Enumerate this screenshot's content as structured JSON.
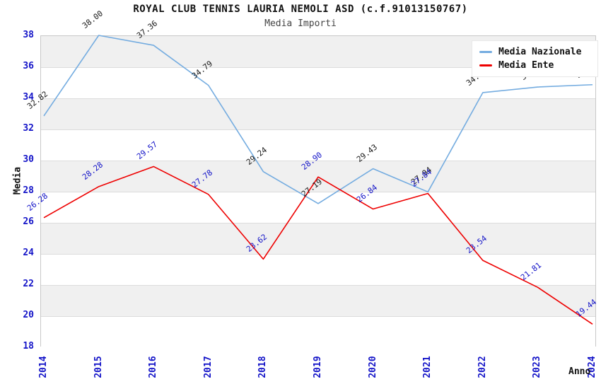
{
  "header": {
    "title": "ROYAL CLUB TENNIS LAURIA NEMOLI ASD (c.f.91013150767)",
    "subtitle": "Media Importi"
  },
  "chart_data": {
    "type": "line",
    "title": "ROYAL CLUB TENNIS LAURIA NEMOLI ASD (c.f.91013150767)",
    "subtitle": "Media Importi",
    "xlabel": "Anno",
    "ylabel": "Media",
    "ylim": [
      18,
      38
    ],
    "ytick_step": 2,
    "grid": "horizontal-bands",
    "legend_position": "top-right",
    "x": [
      2014,
      2015,
      2016,
      2017,
      2018,
      2019,
      2020,
      2021,
      2022,
      2023,
      2024
    ],
    "series": [
      {
        "name": "Media Nazionale",
        "color": "#74ace0",
        "label_color": "#1a1a1a",
        "values": [
          32.82,
          38.0,
          37.36,
          34.79,
          29.24,
          27.19,
          29.43,
          27.94,
          34.32,
          34.68,
          34.83
        ]
      },
      {
        "name": "Media Ente",
        "color": "#ee0000",
        "label_color": "#1414c8",
        "values": [
          26.28,
          28.28,
          29.57,
          27.78,
          23.62,
          28.9,
          26.84,
          27.84,
          23.54,
          21.81,
          19.44
        ]
      }
    ],
    "axis_tick_color": "#1414c8",
    "band_colors": [
      "#f0f0f0",
      "#ffffff"
    ],
    "plot_border_color": "#c8c8c8",
    "gridline_color": "#dcdcdc"
  }
}
